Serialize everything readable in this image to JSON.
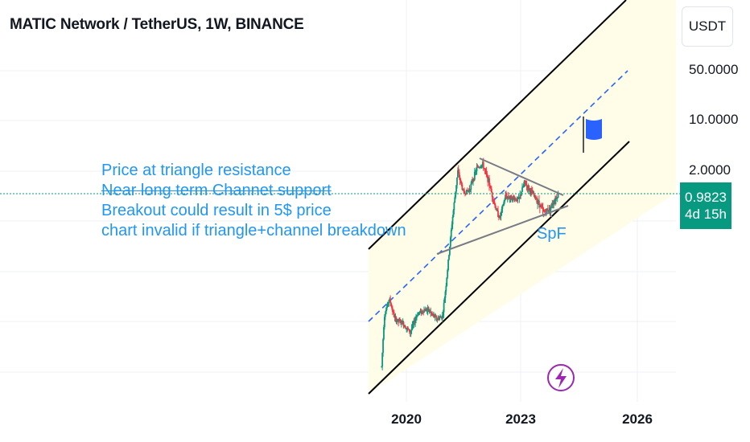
{
  "header": {
    "title": "MATIC Network / TetherUS, 1W, BINANCE",
    "currency": "USDT"
  },
  "chart_data": {
    "type": "candlestick",
    "y_scale": "log",
    "y_ticks": [
      "50.0000",
      "10.0000",
      "2.0000"
    ],
    "x_ticks": [
      "2020",
      "2023",
      "2026"
    ],
    "last_price": "0.9823",
    "countdown": "4d 15h",
    "annotations": {
      "note_lines": [
        "Price at triangle resistance",
        "Near long term  Channet support",
        "Breakout could result in 5$ price",
        "chart invalid if triangle+channel breakdown"
      ],
      "label": "SpF"
    },
    "price_path": [
      {
        "t": 2019.35,
        "p": 0.004
      },
      {
        "t": 2019.42,
        "p": 0.02
      },
      {
        "t": 2019.55,
        "p": 0.035
      },
      {
        "t": 2019.7,
        "p": 0.018
      },
      {
        "t": 2019.9,
        "p": 0.016
      },
      {
        "t": 2020.1,
        "p": 0.012
      },
      {
        "t": 2020.3,
        "p": 0.022
      },
      {
        "t": 2020.55,
        "p": 0.025
      },
      {
        "t": 2020.8,
        "p": 0.018
      },
      {
        "t": 2020.95,
        "p": 0.02
      },
      {
        "t": 2021.05,
        "p": 0.06
      },
      {
        "t": 2021.2,
        "p": 0.4
      },
      {
        "t": 2021.35,
        "p": 2.0
      },
      {
        "t": 2021.5,
        "p": 1.0
      },
      {
        "t": 2021.65,
        "p": 1.1
      },
      {
        "t": 2021.85,
        "p": 2.2
      },
      {
        "t": 2022.0,
        "p": 2.5
      },
      {
        "t": 2022.15,
        "p": 1.5
      },
      {
        "t": 2022.35,
        "p": 0.6
      },
      {
        "t": 2022.45,
        "p": 0.45
      },
      {
        "t": 2022.6,
        "p": 0.9
      },
      {
        "t": 2022.8,
        "p": 0.85
      },
      {
        "t": 2022.95,
        "p": 0.8
      },
      {
        "t": 2023.1,
        "p": 1.4
      },
      {
        "t": 2023.3,
        "p": 1.0
      },
      {
        "t": 2023.5,
        "p": 0.7
      },
      {
        "t": 2023.6,
        "p": 0.55
      },
      {
        "t": 2023.75,
        "p": 0.6
      },
      {
        "t": 2023.95,
        "p": 0.9
      },
      {
        "t": 2024.0,
        "p": 0.98
      }
    ],
    "up_color": "#089981",
    "down_color": "#f23645",
    "annotation_color": "#2196f3",
    "channel_fill": "#fffde7"
  }
}
